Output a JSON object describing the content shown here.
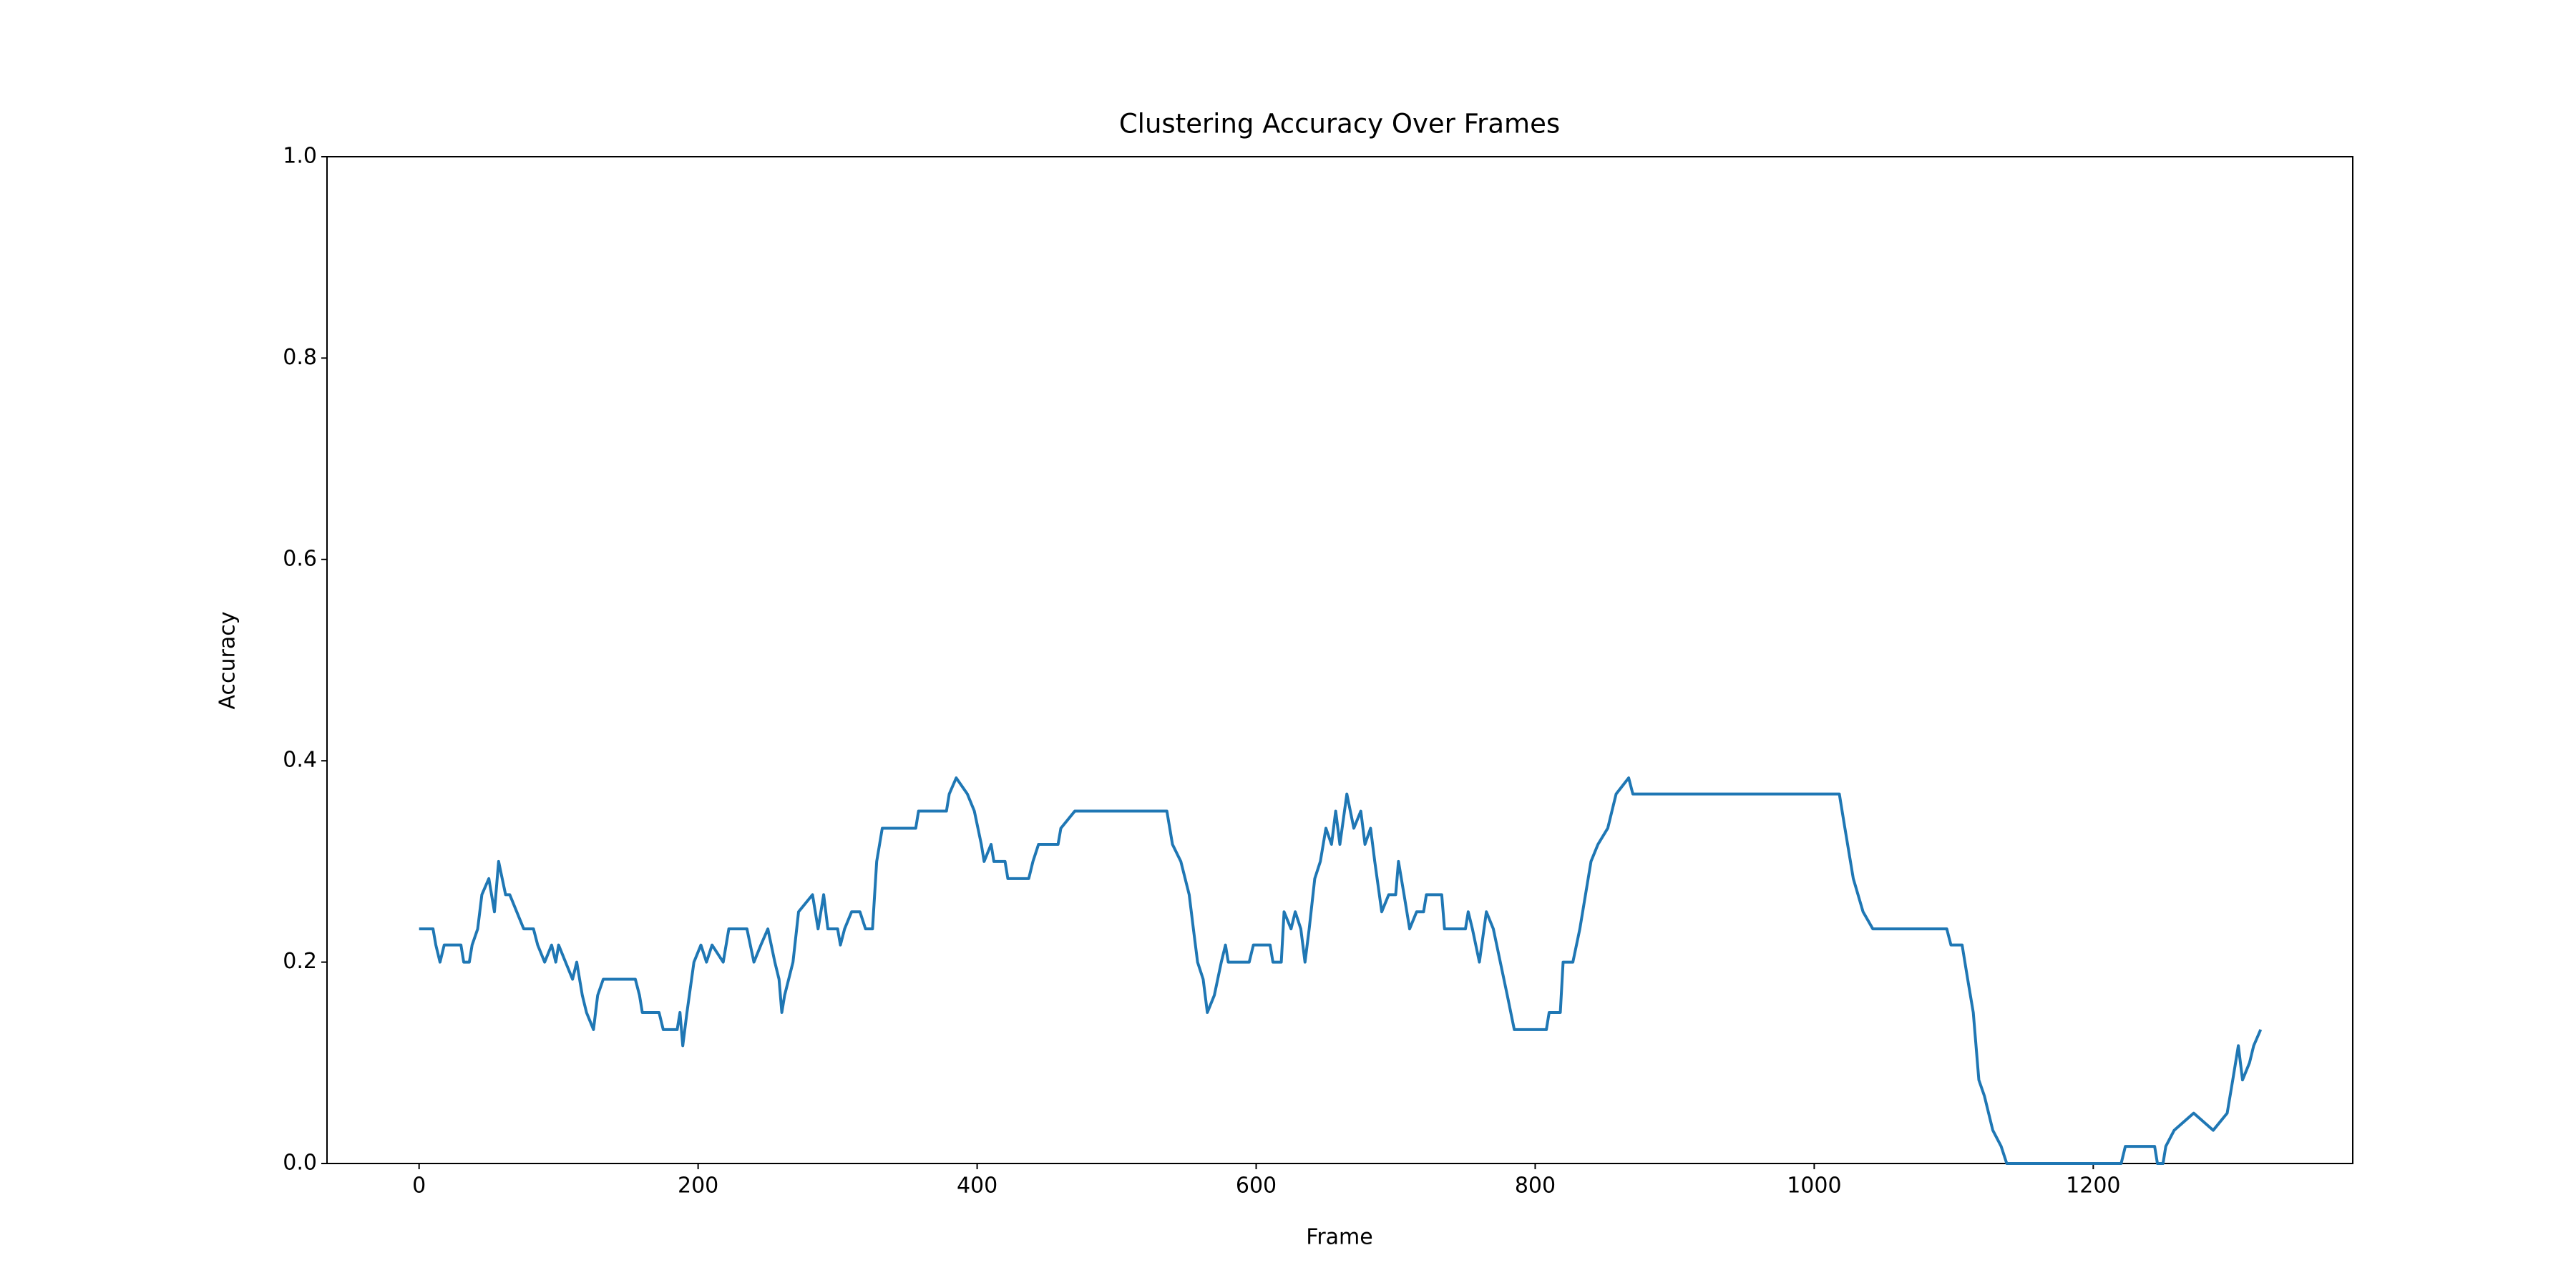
{
  "chart_data": {
    "type": "line",
    "title": "Clustering Accuracy Over Frames",
    "x_label": "Frame",
    "y_label": "Accuracy",
    "color": "#1f77b4",
    "x": [
      0,
      10,
      12,
      15,
      18,
      30,
      32,
      36,
      38,
      42,
      45,
      50,
      54,
      57,
      62,
      65,
      70,
      75,
      82,
      85,
      90,
      95,
      98,
      100,
      105,
      110,
      113,
      117,
      120,
      125,
      128,
      132,
      155,
      158,
      160,
      172,
      175,
      185,
      187,
      189,
      192,
      197,
      202,
      206,
      210,
      218,
      222,
      235,
      240,
      245,
      250,
      255,
      258,
      260,
      262,
      268,
      272,
      282,
      286,
      290,
      293,
      300,
      302,
      305,
      310,
      316,
      320,
      325,
      328,
      332,
      356,
      358,
      378,
      380,
      385,
      393,
      398,
      403,
      405,
      410,
      412,
      420,
      422,
      437,
      440,
      444,
      458,
      460,
      470,
      536,
      540,
      546,
      552,
      555,
      558,
      562,
      565,
      570,
      575,
      578,
      580,
      595,
      598,
      610,
      612,
      618,
      620,
      625,
      628,
      632,
      635,
      638,
      642,
      646,
      650,
      654,
      657,
      660,
      665,
      670,
      675,
      678,
      682,
      685,
      690,
      695,
      700,
      702,
      706,
      710,
      715,
      720,
      722,
      733,
      735,
      750,
      752,
      755,
      760,
      765,
      770,
      775,
      780,
      785,
      808,
      810,
      818,
      820,
      827,
      832,
      840,
      845,
      852,
      858,
      867,
      870,
      1018,
      1022,
      1028,
      1035,
      1042,
      1095,
      1098,
      1106,
      1110,
      1114,
      1118,
      1122,
      1128,
      1134,
      1138,
      1220,
      1223,
      1244,
      1246,
      1250,
      1252,
      1258,
      1272,
      1286,
      1296,
      1300,
      1304,
      1307,
      1312,
      1315,
      1320
    ],
    "values": [
      0.233,
      0.233,
      0.217,
      0.2,
      0.217,
      0.217,
      0.2,
      0.2,
      0.217,
      0.233,
      0.267,
      0.283,
      0.25,
      0.3,
      0.267,
      0.267,
      0.25,
      0.233,
      0.233,
      0.217,
      0.2,
      0.217,
      0.2,
      0.217,
      0.2,
      0.183,
      0.2,
      0.167,
      0.15,
      0.133,
      0.167,
      0.183,
      0.183,
      0.167,
      0.15,
      0.15,
      0.133,
      0.133,
      0.15,
      0.117,
      0.15,
      0.2,
      0.217,
      0.2,
      0.217,
      0.2,
      0.233,
      0.233,
      0.2,
      0.217,
      0.233,
      0.2,
      0.183,
      0.15,
      0.167,
      0.2,
      0.25,
      0.267,
      0.233,
      0.267,
      0.233,
      0.233,
      0.217,
      0.233,
      0.25,
      0.25,
      0.233,
      0.233,
      0.3,
      0.333,
      0.333,
      0.35,
      0.35,
      0.367,
      0.383,
      0.367,
      0.35,
      0.317,
      0.3,
      0.317,
      0.3,
      0.3,
      0.283,
      0.283,
      0.3,
      0.317,
      0.317,
      0.333,
      0.35,
      0.35,
      0.317,
      0.3,
      0.267,
      0.233,
      0.2,
      0.183,
      0.15,
      0.167,
      0.2,
      0.217,
      0.2,
      0.2,
      0.217,
      0.217,
      0.2,
      0.2,
      0.25,
      0.233,
      0.25,
      0.233,
      0.2,
      0.233,
      0.283,
      0.3,
      0.333,
      0.317,
      0.35,
      0.317,
      0.367,
      0.333,
      0.35,
      0.317,
      0.333,
      0.3,
      0.25,
      0.267,
      0.267,
      0.3,
      0.267,
      0.233,
      0.25,
      0.25,
      0.267,
      0.267,
      0.233,
      0.233,
      0.25,
      0.233,
      0.2,
      0.25,
      0.233,
      0.2,
      0.167,
      0.133,
      0.133,
      0.15,
      0.15,
      0.2,
      0.2,
      0.233,
      0.3,
      0.317,
      0.333,
      0.367,
      0.383,
      0.367,
      0.367,
      0.333,
      0.283,
      0.25,
      0.233,
      0.233,
      0.217,
      0.217,
      0.183,
      0.15,
      0.083,
      0.067,
      0.033,
      0.017,
      0,
      0,
      0.017,
      0.017,
      0,
      0,
      0.017,
      0.033,
      0.05,
      0.033,
      0.05,
      0.083,
      0.117,
      0.083,
      0.1,
      0.117,
      0.133
    ],
    "xlim": [
      -66,
      1386
    ],
    "xticks": [
      0,
      200,
      400,
      600,
      800,
      1000,
      1200
    ],
    "ylim": [
      0,
      1
    ],
    "yticks": [
      {
        "value": 0,
        "label": "0.0"
      },
      0.2,
      0.4,
      0.6,
      0.8,
      {
        "value": 1,
        "label": "1.0"
      }
    ]
  }
}
